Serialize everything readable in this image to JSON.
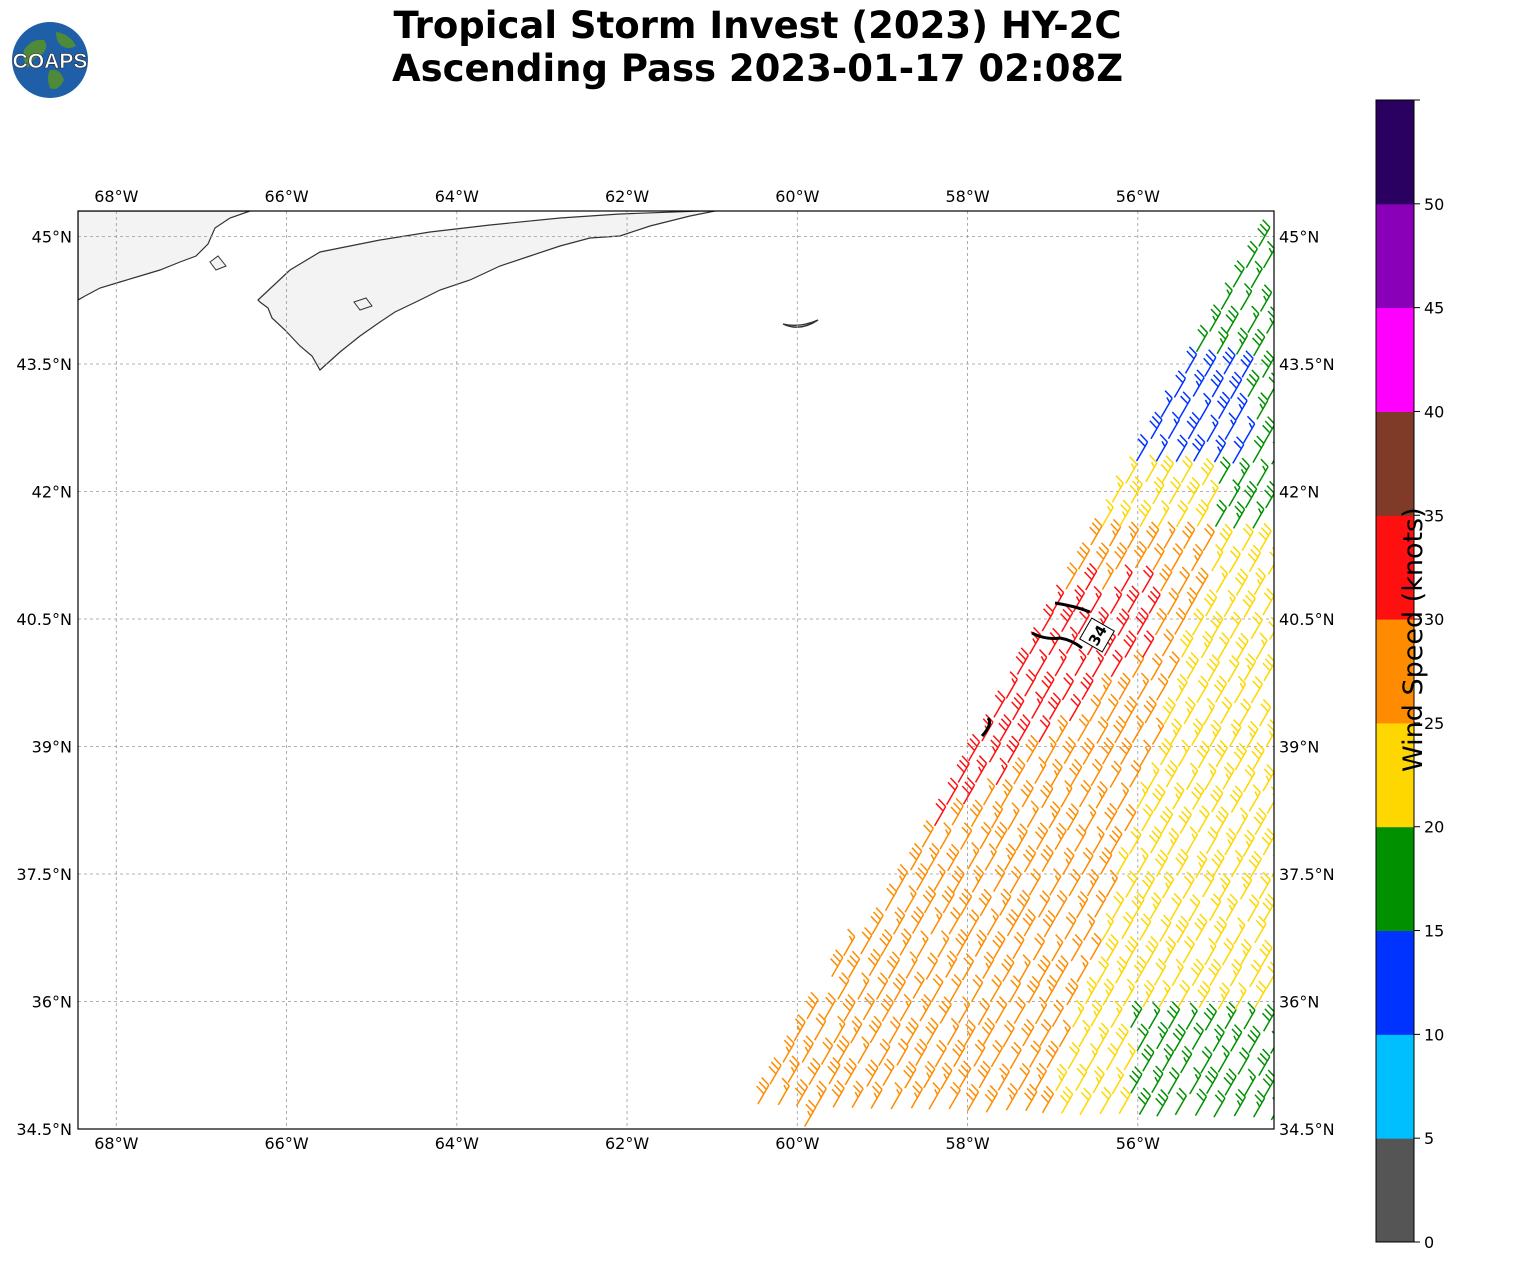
{
  "title": {
    "line1": "Tropical Storm Invest (2023) HY-2C",
    "line2": "Ascending Pass 2023-01-17 02:08Z"
  },
  "logo": {
    "text": "COAPS",
    "icon": "globe-logo-icon"
  },
  "map": {
    "lon_range": [
      -68.45,
      -54.4
    ],
    "lat_range": [
      34.5,
      45.3
    ],
    "lon_ticks": [
      -68,
      -66,
      -64,
      -62,
      -60,
      -58,
      -56
    ],
    "lat_ticks": [
      34.5,
      36,
      37.5,
      39,
      40.5,
      42,
      43.5,
      45
    ],
    "lon_tick_labels": [
      "68°W",
      "66°W",
      "64°W",
      "62°W",
      "60°W",
      "58°W",
      "56°W"
    ],
    "lat_tick_labels": [
      "34.5°N",
      "36°N",
      "37.5°N",
      "39°N",
      "40.5°N",
      "42°N",
      "43.5°N",
      "45°N"
    ],
    "gridlines": true,
    "contour_label": "34"
  },
  "colorbar": {
    "label": "Wind Speed (knots)",
    "ticks": [
      "0",
      "5",
      "10",
      "15",
      "20",
      "25",
      "30",
      "35",
      "40",
      "45",
      "50"
    ],
    "colors": [
      "#555555",
      "#00bfff",
      "#0033ff",
      "#009000",
      "#ffd700",
      "#ff8c00",
      "#ff1010",
      "#803a28",
      "#ff00ff",
      "#8a00b8",
      "#2a0060"
    ]
  }
}
